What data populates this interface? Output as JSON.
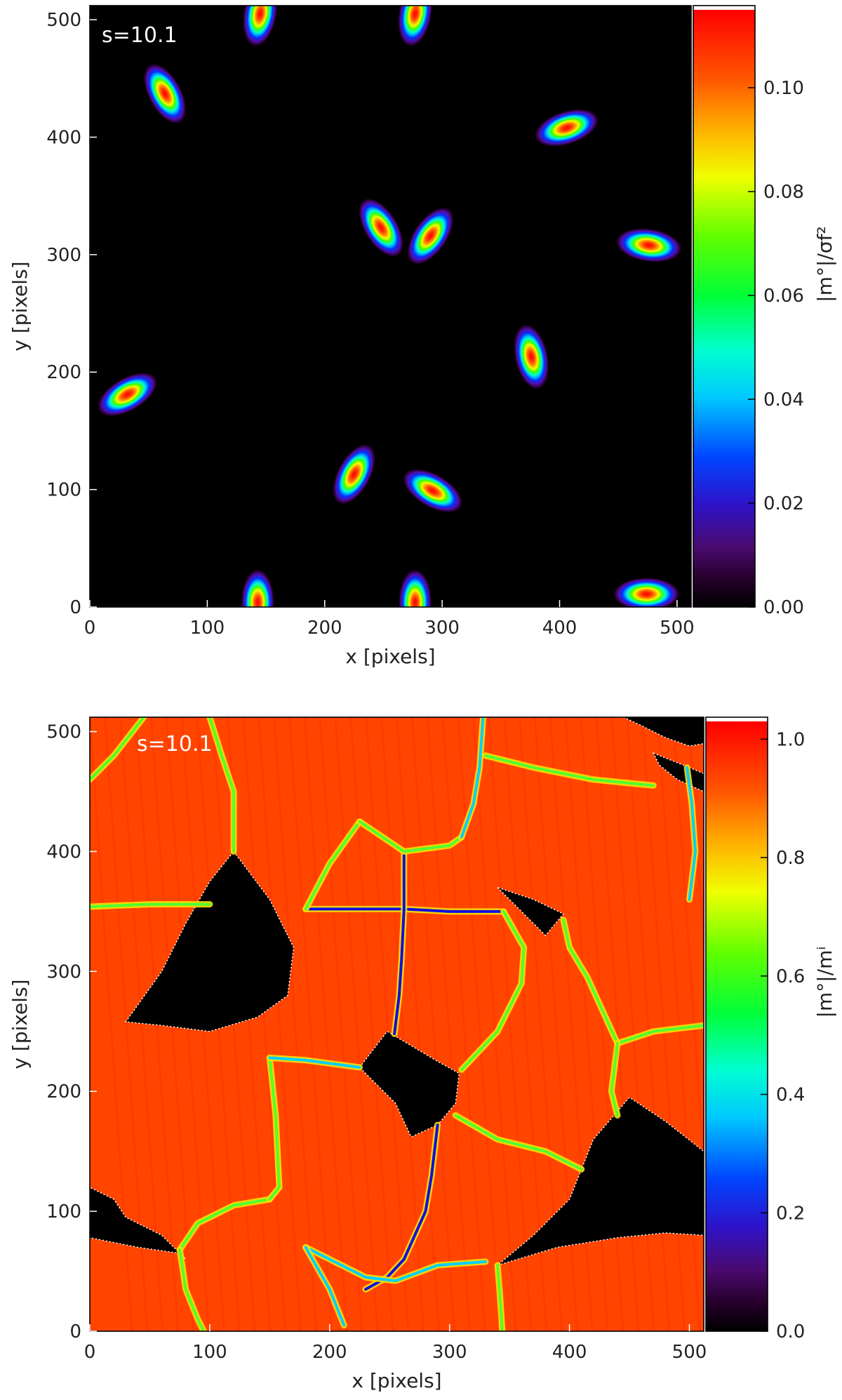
{
  "chart_data": [
    {
      "type": "heatmap",
      "annotation": "s=10.1",
      "xlabel": "x [pixels]",
      "ylabel": "y [pixels]",
      "xlim": [
        0,
        512
      ],
      "ylim": [
        0,
        512
      ],
      "x_ticks": [
        "0",
        "100",
        "200",
        "300",
        "400",
        "500"
      ],
      "y_ticks": [
        "0",
        "100",
        "200",
        "300",
        "400",
        "500"
      ],
      "background_value": 0.0,
      "colorbar": {
        "label": "|m°|/σf²",
        "ticks": [
          "0.00",
          "0.02",
          "0.04",
          "0.06",
          "0.08",
          "0.10"
        ],
        "range": [
          0.0,
          0.115
        ],
        "colormap": "rainbow (black-purple-blue-cyan-green-yellow-red)"
      },
      "blobs": [
        {
          "x": 145,
          "y": 505,
          "peak": 0.115
        },
        {
          "x": 277,
          "y": 505,
          "peak": 0.115
        },
        {
          "x": 64,
          "y": 437,
          "peak": 0.115
        },
        {
          "x": 406,
          "y": 408,
          "peak": 0.115
        },
        {
          "x": 248,
          "y": 323,
          "peak": 0.115
        },
        {
          "x": 290,
          "y": 316,
          "peak": 0.115
        },
        {
          "x": 476,
          "y": 308,
          "peak": 0.115
        },
        {
          "x": 376,
          "y": 213,
          "peak": 0.115
        },
        {
          "x": 32,
          "y": 181,
          "peak": 0.115
        },
        {
          "x": 225,
          "y": 113,
          "peak": 0.115
        },
        {
          "x": 292,
          "y": 99,
          "peak": 0.115
        },
        {
          "x": 143,
          "y": 4,
          "peak": 0.115
        },
        {
          "x": 277,
          "y": 4,
          "peak": 0.115
        },
        {
          "x": 474,
          "y": 11,
          "peak": 0.115
        }
      ]
    },
    {
      "type": "heatmap",
      "annotation": "s=10.1",
      "xlabel": "x [pixels]",
      "ylabel": "y [pixels]",
      "xlim": [
        0,
        512
      ],
      "ylim": [
        0,
        512
      ],
      "x_ticks": [
        "0",
        "100",
        "200",
        "300",
        "400",
        "500"
      ],
      "y_ticks": [
        "0",
        "100",
        "200",
        "300",
        "400",
        "500"
      ],
      "cell_value": 1.0,
      "void_value": 0.0,
      "colorbar": {
        "label": "|m°|/mⁱ",
        "ticks": [
          "0.0",
          "0.2",
          "0.4",
          "0.6",
          "0.8",
          "1.0"
        ],
        "range": [
          0.0,
          1.03
        ],
        "colormap": "rainbow (black-purple-blue-cyan-green-yellow-red)"
      },
      "voids": [
        [
          [
            120,
            400
          ],
          [
            150,
            360
          ],
          [
            170,
            320
          ],
          [
            165,
            280
          ],
          [
            140,
            262
          ],
          [
            100,
            250
          ],
          [
            60,
            255
          ],
          [
            30,
            258
          ],
          [
            60,
            300
          ],
          [
            80,
            340
          ],
          [
            100,
            375
          ]
        ],
        [
          [
            225,
            220
          ],
          [
            248,
            250
          ],
          [
            290,
            225
          ],
          [
            308,
            215
          ],
          [
            305,
            190
          ],
          [
            290,
            172
          ],
          [
            268,
            162
          ],
          [
            255,
            190
          ],
          [
            240,
            205
          ]
        ],
        [
          [
            0,
            120
          ],
          [
            0,
            78
          ],
          [
            40,
            70
          ],
          [
            75,
            65
          ],
          [
            80,
            60
          ],
          [
            60,
            80
          ],
          [
            30,
            95
          ],
          [
            20,
            110
          ]
        ],
        [
          [
            340,
            55
          ],
          [
            390,
            70
          ],
          [
            440,
            78
          ],
          [
            480,
            82
          ],
          [
            512,
            80
          ],
          [
            512,
            150
          ],
          [
            480,
            175
          ],
          [
            450,
            195
          ],
          [
            420,
            160
          ],
          [
            400,
            110
          ],
          [
            370,
            80
          ]
        ],
        [
          [
            340,
            370
          ],
          [
            360,
            350
          ],
          [
            380,
            330
          ],
          [
            395,
            348
          ],
          [
            370,
            360
          ]
        ],
        [
          [
            470,
            482
          ],
          [
            500,
            470
          ],
          [
            512,
            465
          ],
          [
            512,
            450
          ],
          [
            490,
            460
          ],
          [
            475,
            472
          ]
        ],
        [
          [
            445,
            512
          ],
          [
            460,
            505
          ],
          [
            480,
            495
          ],
          [
            500,
            488
          ],
          [
            512,
            490
          ],
          [
            512,
            512
          ]
        ]
      ],
      "ridges": [
        {
          "points": [
            [
              180,
              352
            ],
            [
              225,
              352
            ],
            [
              262,
              352
            ],
            [
              300,
              350
            ],
            [
              345,
              350
            ]
          ],
          "min": 0.2
        },
        {
          "points": [
            [
              262,
              400
            ],
            [
              262,
              370
            ],
            [
              262,
              352
            ],
            [
              260,
              310
            ],
            [
              258,
              280
            ],
            [
              254,
              248
            ]
          ],
          "min": 0.2
        },
        {
          "points": [
            [
              180,
              352
            ],
            [
              200,
              390
            ],
            [
              225,
              425
            ]
          ],
          "min": 0.6
        },
        {
          "points": [
            [
              225,
              425
            ],
            [
              262,
              400
            ],
            [
              300,
              405
            ],
            [
              310,
              412
            ]
          ],
          "min": 0.6
        },
        {
          "points": [
            [
              310,
              412
            ],
            [
              320,
              440
            ],
            [
              325,
              470
            ],
            [
              328,
              512
            ]
          ],
          "min": 0.4
        },
        {
          "points": [
            [
              345,
              350
            ],
            [
              362,
              320
            ],
            [
              360,
              290
            ],
            [
              340,
              250
            ],
            [
              310,
              218
            ]
          ],
          "min": 0.6
        },
        {
          "points": [
            [
              395,
              343
            ],
            [
              400,
              320
            ],
            [
              415,
              295
            ],
            [
              440,
              240
            ]
          ],
          "min": 0.6
        },
        {
          "points": [
            [
              440,
              240
            ],
            [
              470,
              250
            ],
            [
              512,
              255
            ]
          ],
          "min": 0.6
        },
        {
          "points": [
            [
              440,
              240
            ],
            [
              435,
              200
            ],
            [
              440,
              180
            ]
          ],
          "min": 0.6
        },
        {
          "points": [
            [
              305,
              180
            ],
            [
              340,
              160
            ],
            [
              380,
              150
            ],
            [
              410,
              135
            ]
          ],
          "min": 0.6
        },
        {
          "points": [
            [
              290,
              172
            ],
            [
              285,
              130
            ],
            [
              280,
              100
            ],
            [
              262,
              60
            ],
            [
              248,
              45
            ],
            [
              230,
              35
            ]
          ],
          "min": 0.2
        },
        {
          "points": [
            [
              180,
              70
            ],
            [
              210,
              55
            ],
            [
              230,
              45
            ],
            [
              255,
              42
            ],
            [
              290,
              55
            ],
            [
              330,
              58
            ]
          ],
          "min": 0.4
        },
        {
          "points": [
            [
              150,
              110
            ],
            [
              120,
              105
            ],
            [
              90,
              90
            ],
            [
              75,
              68
            ]
          ],
          "min": 0.6
        },
        {
          "points": [
            [
              75,
              68
            ],
            [
              80,
              35
            ],
            [
              90,
              10
            ],
            [
              95,
              0
            ]
          ],
          "min": 0.6
        },
        {
          "points": [
            [
              340,
              55
            ],
            [
              342,
              30
            ],
            [
              344,
              0
            ]
          ],
          "min": 0.6
        },
        {
          "points": [
            [
              212,
              5
            ],
            [
              200,
              35
            ],
            [
              180,
              70
            ]
          ],
          "min": 0.4
        },
        {
          "points": [
            [
              0,
              354
            ],
            [
              50,
              356
            ],
            [
              100,
              356
            ]
          ],
          "min": 0.6
        },
        {
          "points": [
            [
              120,
              400
            ],
            [
              120,
              450
            ],
            [
              110,
              480
            ],
            [
              100,
              512
            ]
          ],
          "min": 0.6
        },
        {
          "points": [
            [
              0,
              460
            ],
            [
              20,
              480
            ],
            [
              45,
              512
            ]
          ],
          "min": 0.6
        },
        {
          "points": [
            [
              150,
              228
            ],
            [
              155,
              180
            ],
            [
              158,
              120
            ],
            [
              150,
              110
            ]
          ],
          "min": 0.6
        },
        {
          "points": [
            [
              500,
              360
            ],
            [
              505,
              400
            ],
            [
              502,
              440
            ],
            [
              498,
              470
            ]
          ],
          "min": 0.4
        },
        {
          "points": [
            [
              150,
              228
            ],
            [
              180,
              226
            ],
            [
              225,
              220
            ]
          ],
          "min": 0.4
        },
        {
          "points": [
            [
              330,
              480
            ],
            [
              370,
              470
            ],
            [
              420,
              460
            ],
            [
              470,
              455
            ]
          ],
          "min": 0.6
        }
      ]
    }
  ]
}
